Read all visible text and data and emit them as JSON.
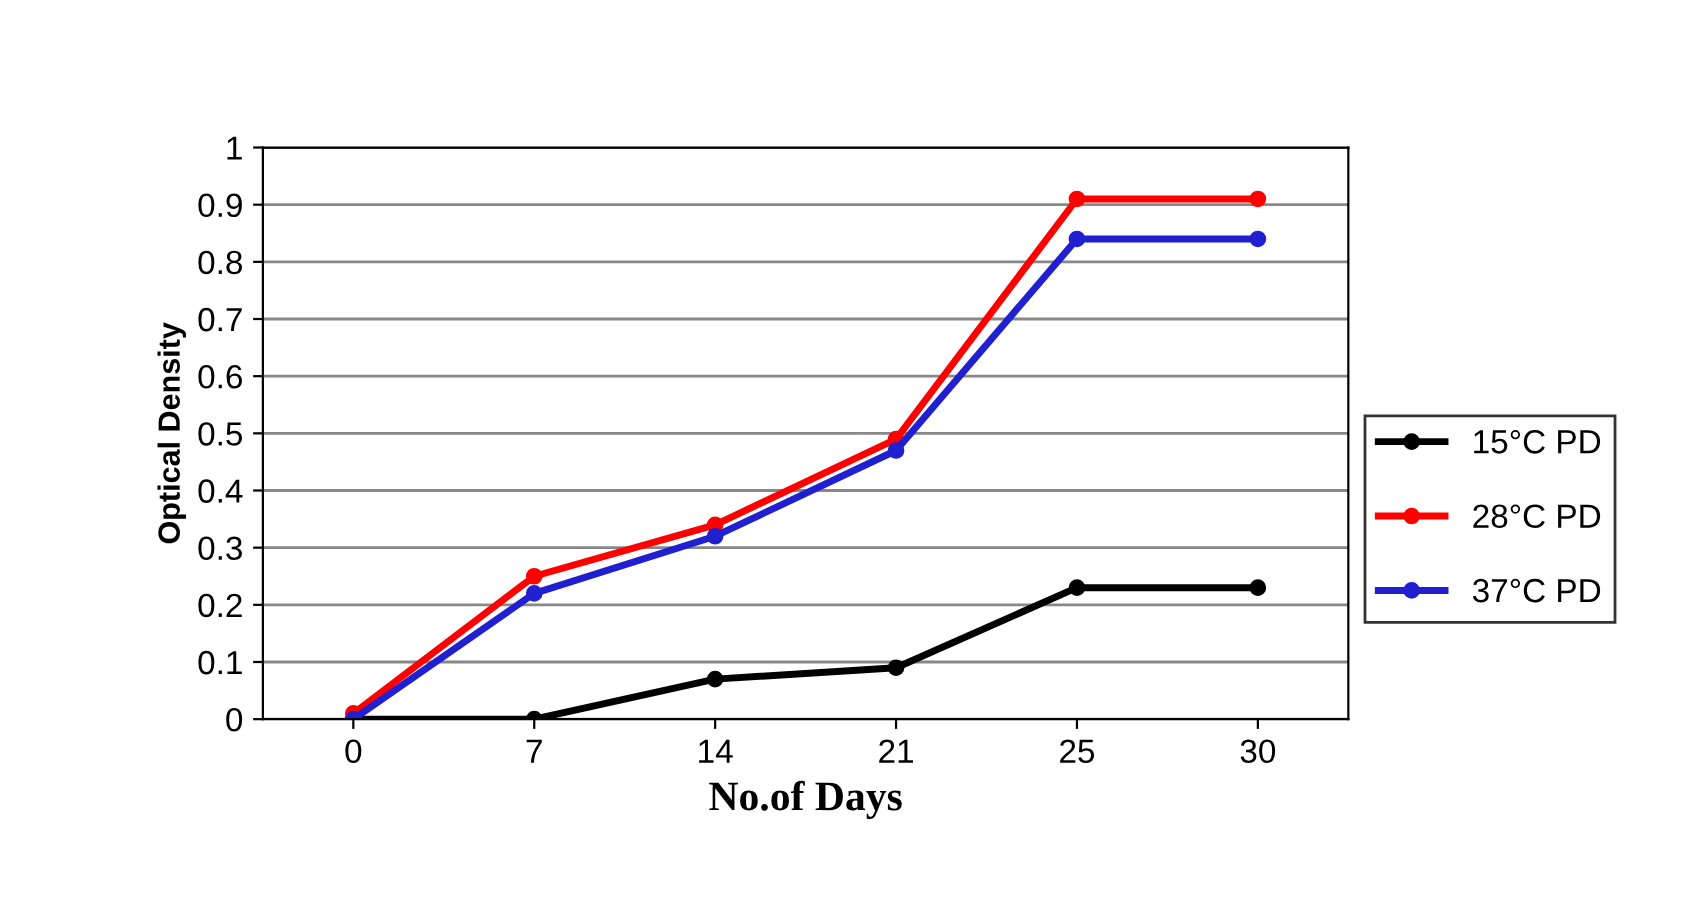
{
  "chart_data": {
    "type": "line",
    "xlabel": "No.of Days",
    "ylabel": "Optical Density",
    "categories": [
      "0",
      "7",
      "14",
      "21",
      "25",
      "30"
    ],
    "series": [
      {
        "name": "15°C PD",
        "color": "#000000",
        "values": [
          0,
          0,
          0.07,
          0.09,
          0.23,
          0.23
        ]
      },
      {
        "name": "28°C PD",
        "color": "#ff0000",
        "values": [
          0.01,
          0.25,
          0.34,
          0.49,
          0.91,
          0.91
        ]
      },
      {
        "name": "37°C PD",
        "color": "#2020d0",
        "values": [
          0.0,
          0.22,
          0.32,
          0.47,
          0.84,
          0.84
        ]
      }
    ],
    "ylim": [
      0,
      1
    ],
    "yticks": [
      0,
      0.1,
      0.2,
      0.3,
      0.4,
      0.5,
      0.6,
      0.7,
      0.8,
      0.9,
      1
    ],
    "grid": "y",
    "legend": "right",
    "marker": "circle",
    "line_style": "solid"
  }
}
